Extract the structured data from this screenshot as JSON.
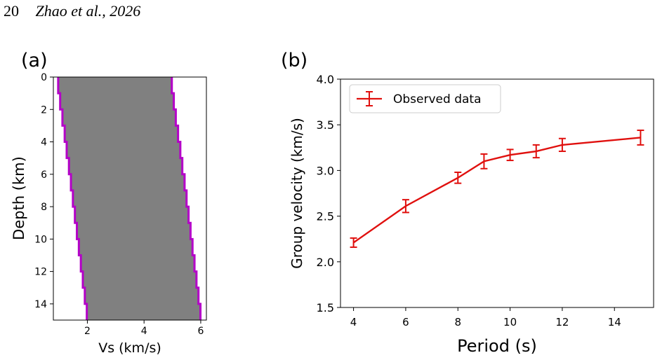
{
  "page_header": {
    "page_number": "20",
    "running_head": "Zhao et al., 2026"
  },
  "colors": {
    "profile_fill": "#808080",
    "profile_edge": "#b400c8",
    "observed_line": "#e0100e"
  },
  "chart_data": [
    {
      "type": "area",
      "panel_label": "(a)",
      "title": "",
      "xlabel": "Vs (km/s)",
      "ylabel": "Depth (km)",
      "xlim": [
        0.8,
        6.2
      ],
      "ylim": [
        15,
        0
      ],
      "y_inverted": true,
      "x_ticks": [
        2,
        4,
        6
      ],
      "y_ticks": [
        0,
        2,
        4,
        6,
        8,
        10,
        12,
        14
      ],
      "grid": false,
      "series": [
        {
          "layer_tops": [
            0,
            1,
            2,
            3,
            4,
            5,
            6,
            7,
            8,
            9,
            10,
            11,
            12,
            13,
            14
          ],
          "layer_bottoms": [
            1,
            2,
            3,
            4,
            5,
            6,
            7,
            8,
            9,
            10,
            11,
            12,
            13,
            14,
            15
          ],
          "vs_min": [
            0.97,
            1.04,
            1.12,
            1.2,
            1.27,
            1.35,
            1.42,
            1.49,
            1.56,
            1.63,
            1.7,
            1.77,
            1.84,
            1.91,
            1.98
          ],
          "vs_max": [
            4.98,
            5.05,
            5.12,
            5.2,
            5.28,
            5.35,
            5.43,
            5.5,
            5.57,
            5.64,
            5.71,
            5.78,
            5.85,
            5.92,
            5.99
          ]
        }
      ]
    },
    {
      "type": "line",
      "panel_label": "(b)",
      "title": "",
      "xlabel": "Period (s)",
      "ylabel": "Group velocity (km/s)",
      "xlim": [
        3.5,
        15.5
      ],
      "ylim": [
        1.5,
        4.0
      ],
      "x_ticks": [
        4,
        6,
        8,
        10,
        12,
        14
      ],
      "y_ticks": [
        "1.5",
        "2.0",
        "2.5",
        "3.0",
        "3.5",
        "4.0"
      ],
      "grid": false,
      "legend_position": "top-left",
      "series": [
        {
          "name": "Observed data",
          "x": [
            4,
            6,
            8,
            9,
            10,
            11,
            12,
            15
          ],
          "y": [
            2.21,
            2.61,
            2.92,
            3.1,
            3.17,
            3.21,
            3.28,
            3.36
          ],
          "error": [
            0.05,
            0.07,
            0.06,
            0.08,
            0.06,
            0.07,
            0.07,
            0.08
          ]
        }
      ]
    }
  ]
}
